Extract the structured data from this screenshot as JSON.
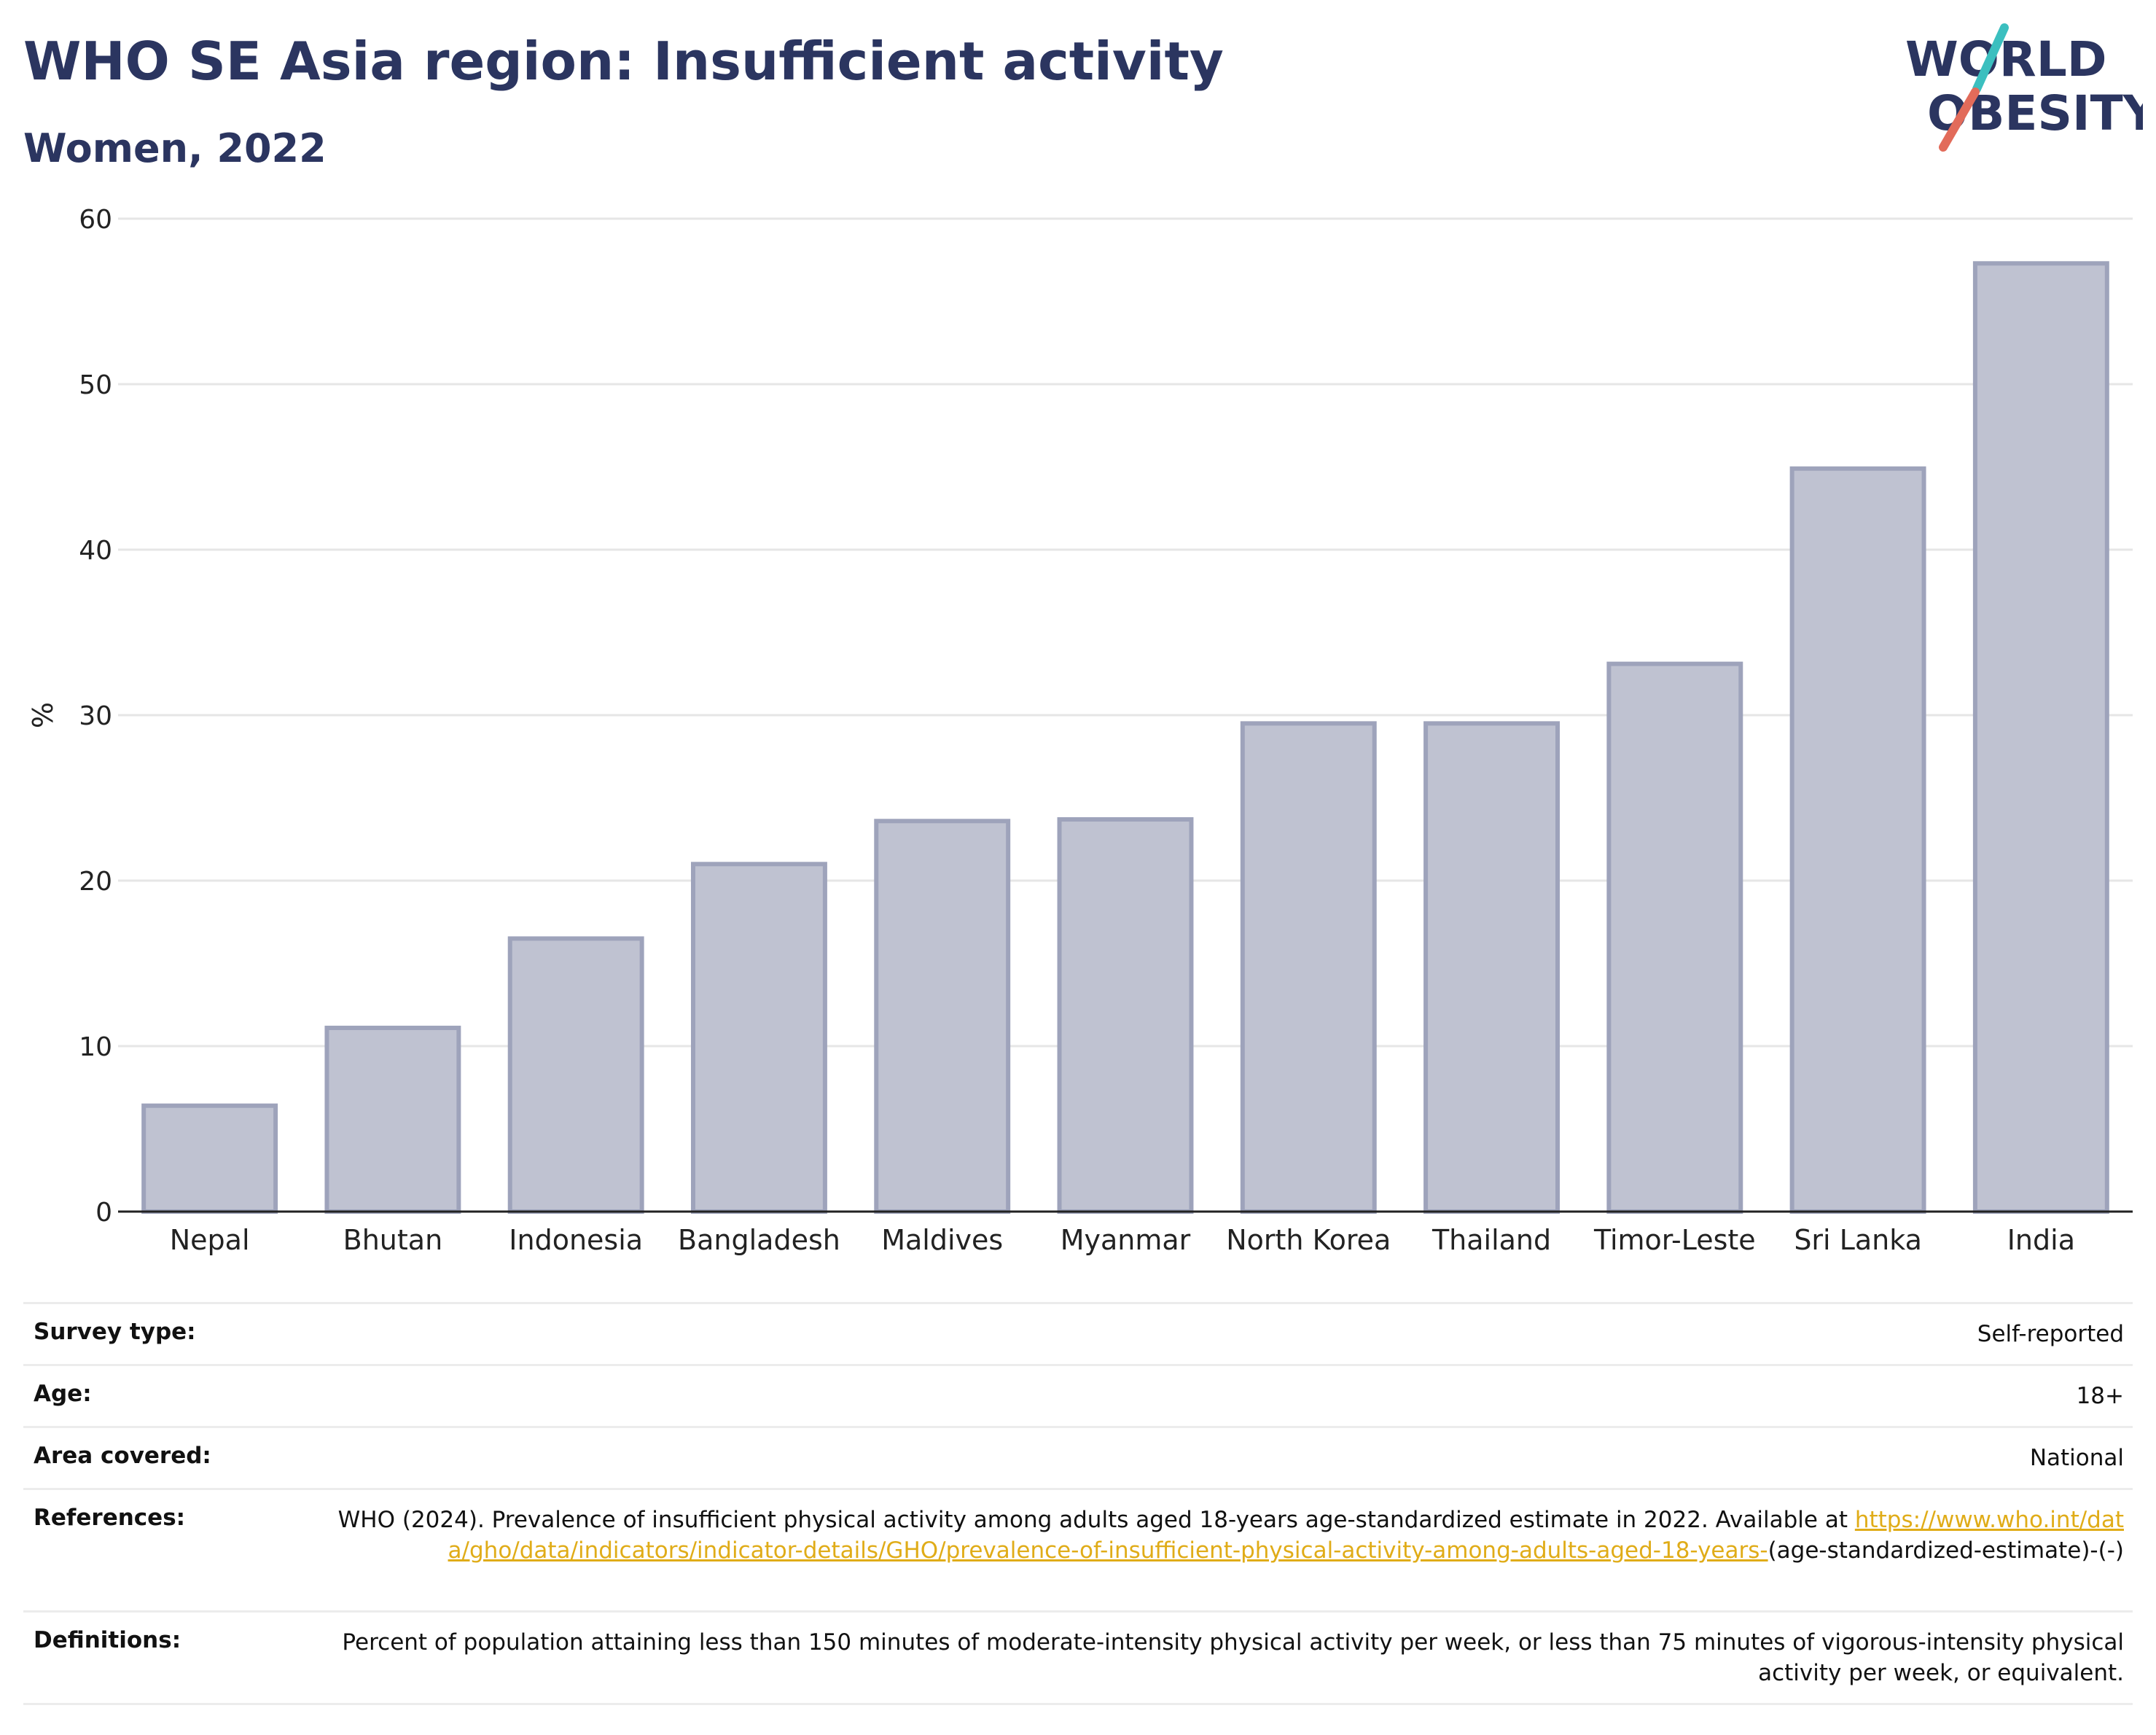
{
  "header": {
    "title": "WHO SE Asia region: Insufficient activity",
    "subtitle": "Women, 2022"
  },
  "logo": {
    "line1": "WORLD",
    "line2": "OBESITY",
    "colors": {
      "text": "#2b3560",
      "slash_teal": "#3bbfbf",
      "slash_coral": "#e26b5a"
    }
  },
  "chart_data": {
    "type": "bar",
    "title": "WHO SE Asia region: Insufficient activity",
    "subtitle": "Women, 2022",
    "xlabel": "",
    "ylabel": "%",
    "ylim": [
      0,
      60
    ],
    "yticks": [
      0,
      10,
      20,
      30,
      40,
      50,
      60
    ],
    "categories": [
      "Nepal",
      "Bhutan",
      "Indonesia",
      "Bangladesh",
      "Maldives",
      "Myanmar",
      "North Korea",
      "Thailand",
      "Timor-Leste",
      "Sri Lanka",
      "India"
    ],
    "values": [
      6.4,
      11.1,
      16.5,
      21.0,
      23.6,
      23.7,
      29.5,
      29.5,
      33.1,
      44.9,
      57.3
    ],
    "grid": true,
    "legend": "none",
    "colors": {
      "bar_fill": "#bfc2d1",
      "bar_stroke": "#9ea3bb",
      "axis": "#222222",
      "grid": "#e6e6e6"
    }
  },
  "meta": {
    "survey_type": {
      "label": "Survey type:",
      "value": "Self-reported"
    },
    "age": {
      "label": "Age:",
      "value": "18+"
    },
    "area": {
      "label": "Area covered:",
      "value": "National"
    },
    "references": {
      "label": "References:",
      "text": "WHO (2024). Prevalence of insufficient physical activity among adults aged 18-years age-standardized estimate in 2022. Available at",
      "link": "https://www.who.int/data/gho/data/indicators/indicator-details/GHO/prevalence-of-insufficient-physical-activity-among-adults-aged-18-years-",
      "suffix": "(age-standardized-estimate)-(-)"
    },
    "definitions": {
      "label": "Definitions:",
      "value": "Percent of population attaining less than 150 minutes of moderate-intensity physical activity per week, or less than 75 minutes of vigorous-intensity physical activity per week, or equivalent."
    }
  }
}
